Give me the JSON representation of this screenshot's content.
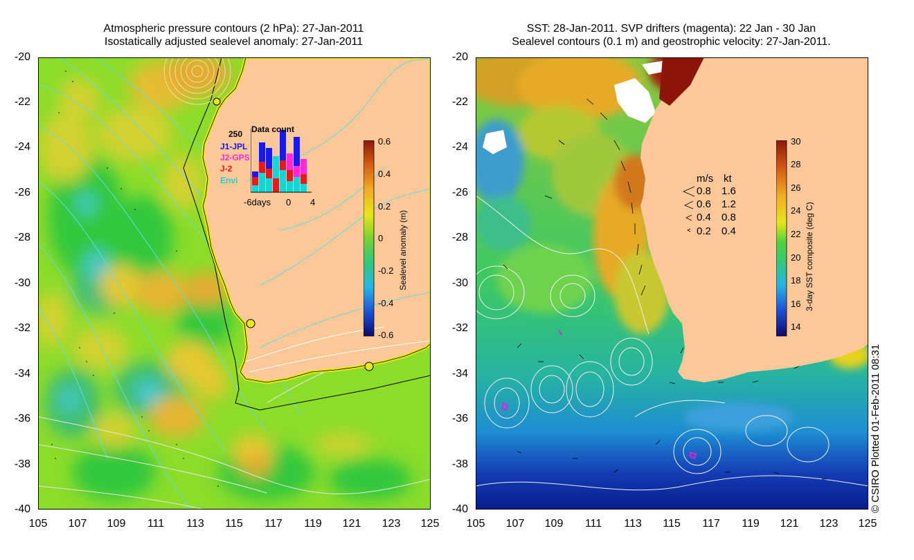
{
  "left_panel": {
    "title_line1": "Atmospheric pressure contours (2 hPa): 27-Jan-2011",
    "title_line2": "Isostatically adjusted sealevel anomaly: 27-Jan-2011",
    "colorbar_label": "Sealevel anomaly (m)",
    "colorbar_ticks": [
      "0.6",
      "0.4",
      "0.2",
      "0",
      "-0.2",
      "-0.4",
      "-0.6"
    ],
    "inset": {
      "title": "Data count",
      "max_label": "250",
      "legend": [
        {
          "label": "J1-JPL",
          "color": "#1a1ae6"
        },
        {
          "label": "J2-GPS",
          "color": "#ff2ad4"
        },
        {
          "label": "J-2",
          "color": "#e61a1a"
        },
        {
          "label": "Envi",
          "color": "#1ad4d4"
        }
      ],
      "xlabel_left": "-6days",
      "xlabel_mid": "0",
      "xlabel_right": "4"
    }
  },
  "right_panel": {
    "title_line1": "SST: 28-Jan-2011. SVP drifters (magenta): 22 Jan - 30 Jan",
    "title_line2": "Sealevel contours (0.1 m) and geostrophic velocity: 27-Jan-2011.",
    "colorbar_label": "3-day SST composite (deg C)",
    "colorbar_ticks": [
      "30",
      "28",
      "26",
      "24",
      "22",
      "20",
      "18",
      "16",
      "14"
    ],
    "velocity_legend": {
      "header_ms": "m/s",
      "header_kt": "kt",
      "rows": [
        {
          "ms": "0.8",
          "kt": "1.6"
        },
        {
          "ms": "0.6",
          "kt": "1.2"
        },
        {
          "ms": "0.4",
          "kt": "0.8"
        },
        {
          "ms": "0.2",
          "kt": "0.4"
        }
      ]
    }
  },
  "axes": {
    "y_ticks": [
      "-20",
      "-22",
      "-24",
      "-26",
      "-28",
      "-30",
      "-32",
      "-34",
      "-36",
      "-38",
      "-40"
    ],
    "x_ticks": [
      "105",
      "107",
      "109",
      "111",
      "113",
      "115",
      "117",
      "119",
      "121",
      "123",
      "125"
    ]
  },
  "credit": "© CSIRO Plotted 01-Feb-2011 08:31",
  "colors": {
    "land": "#fcc89a",
    "ocean_green": "#3cd23c",
    "accent_yellow": "#e6e61e",
    "drifter_magenta": "#e020e0"
  }
}
